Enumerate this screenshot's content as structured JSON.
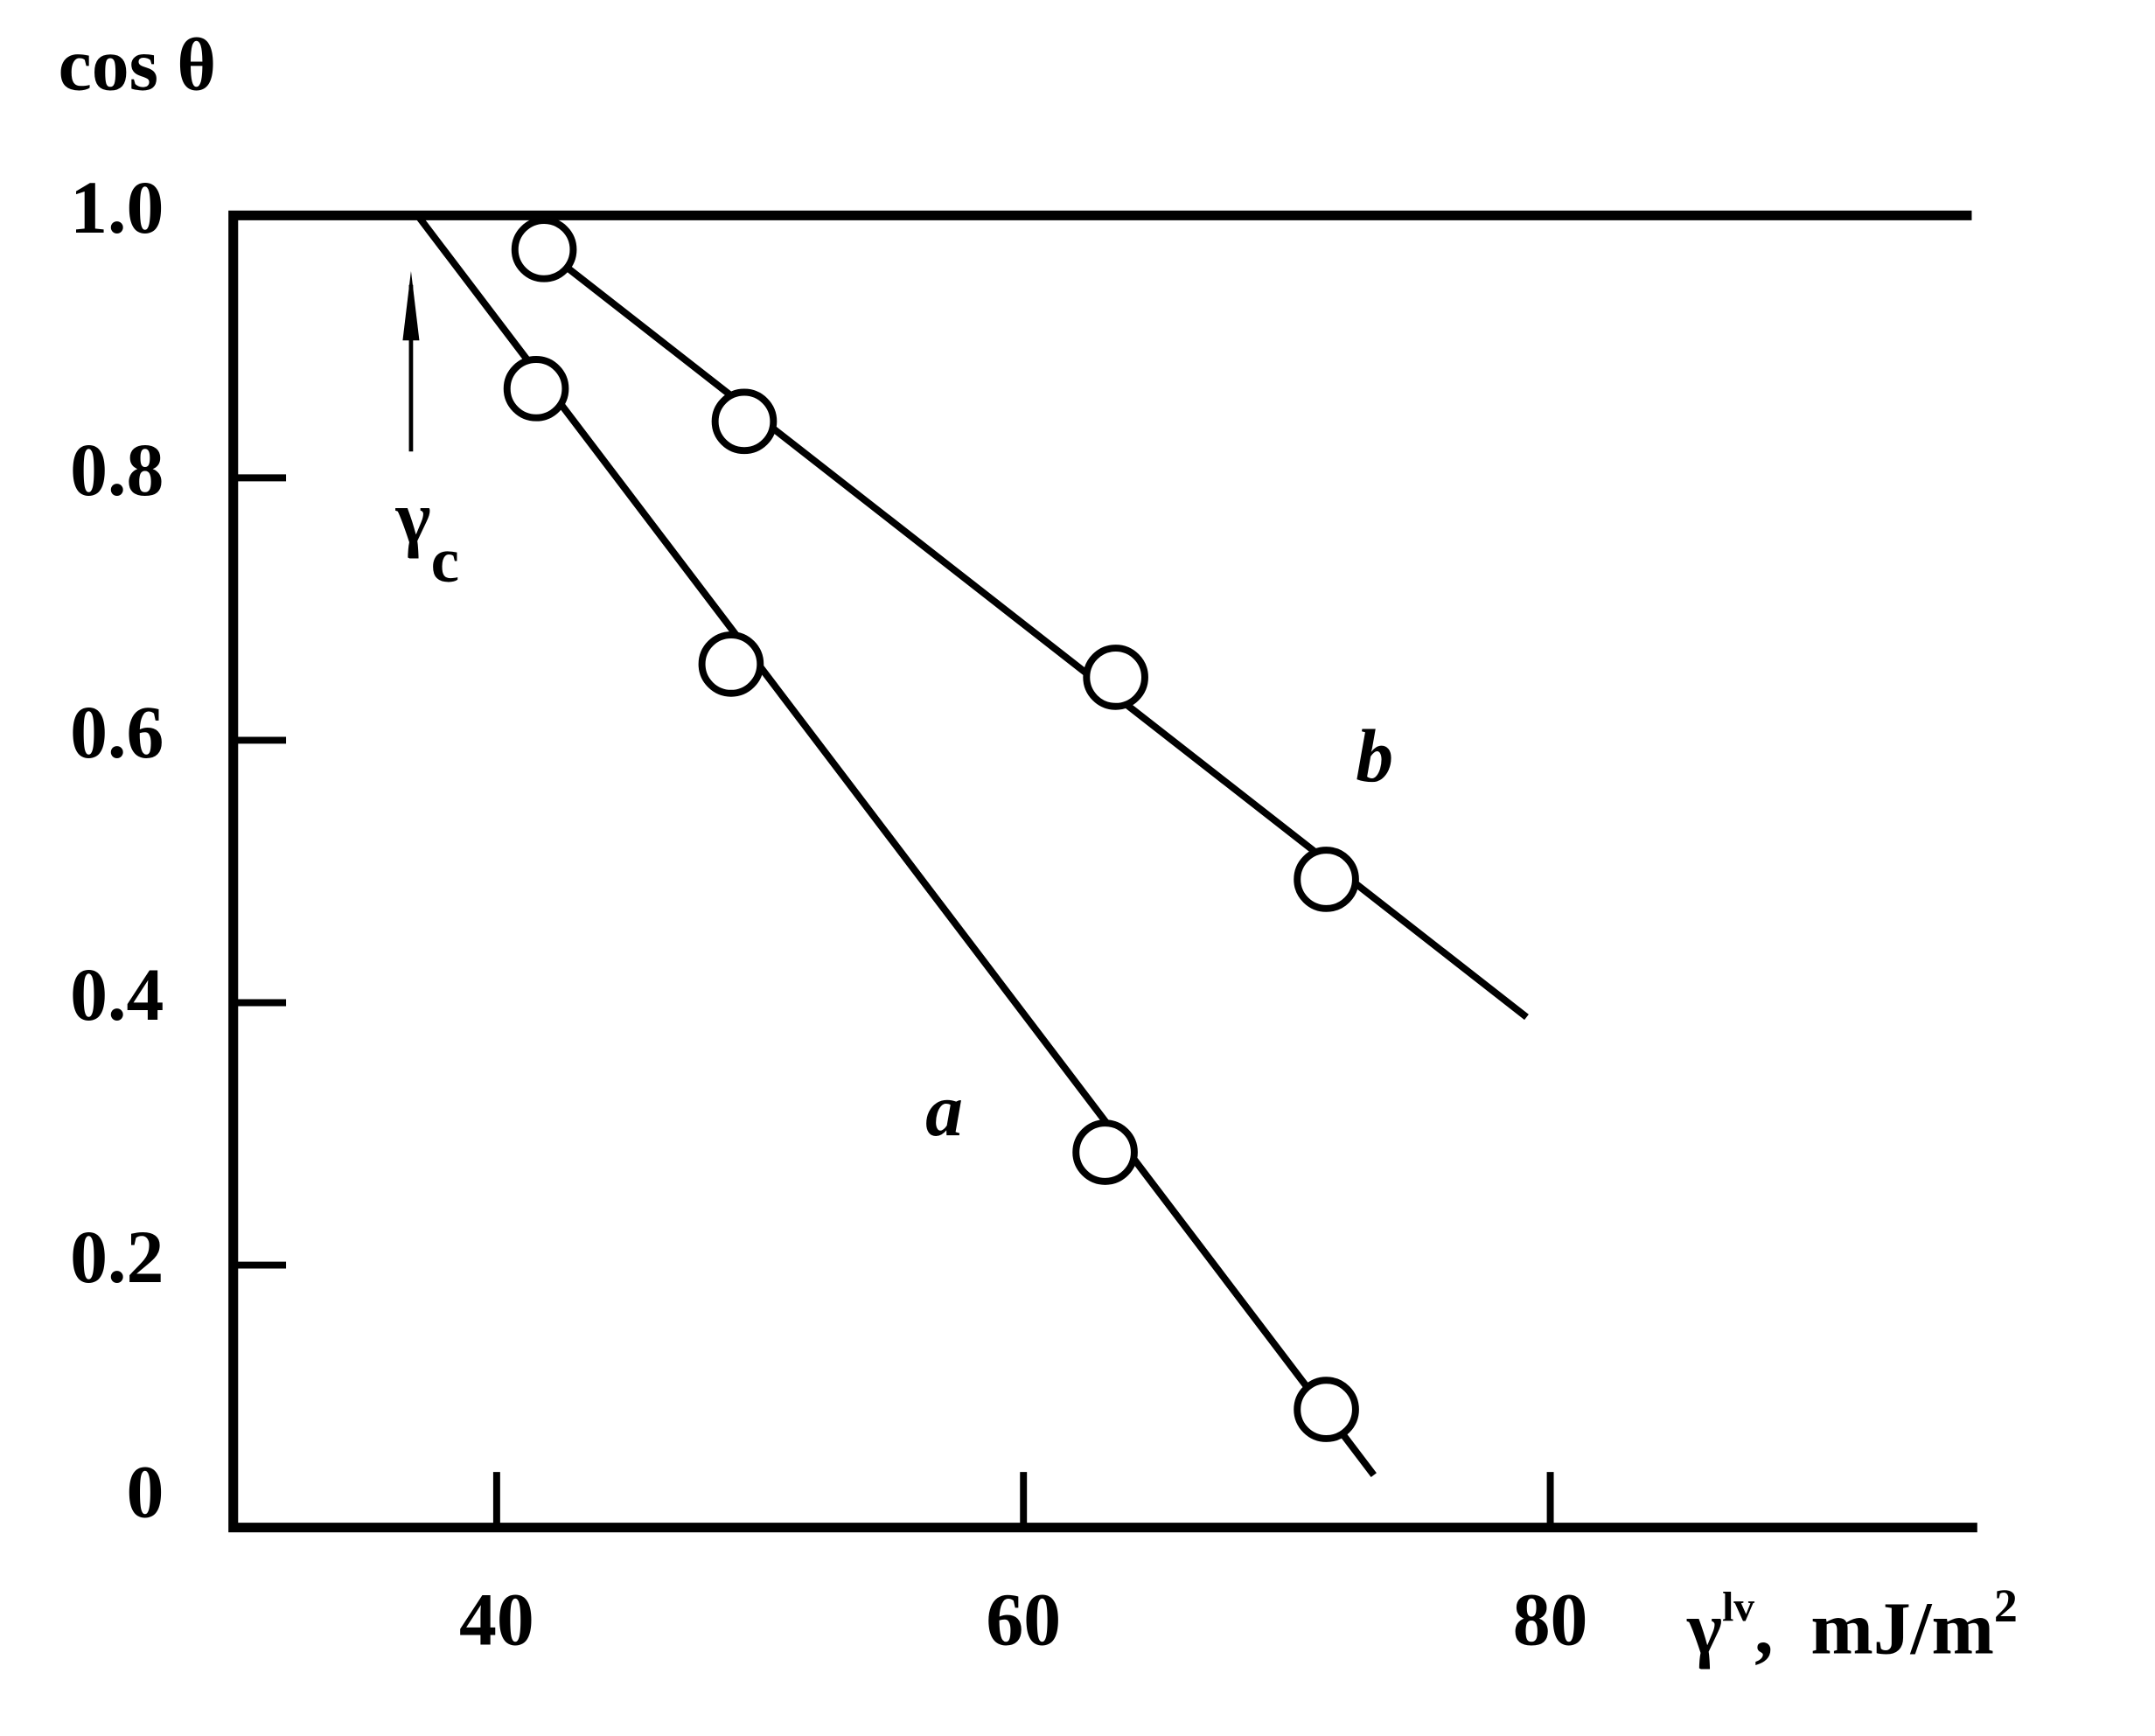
{
  "chart_data": {
    "type": "scatter",
    "y_label": "cos θ",
    "x_label": {
      "symbol": "γ",
      "superscript": "lv",
      "unit": ",  mJ/m",
      "unit_superscript": "2"
    },
    "annotation": {
      "symbol": "γ",
      "subscript": "c"
    },
    "xlim": [
      30,
      96
    ],
    "ylim": [
      0,
      1
    ],
    "xticks": [
      40,
      60,
      80
    ],
    "yticks": [
      0,
      0.2,
      0.4,
      0.6,
      0.8,
      {
        "value": 1,
        "label": "1.0"
      }
    ],
    "series": [
      {
        "name": "a",
        "color": "#000000",
        "x": [
          41.5,
          48.9,
          63.1,
          71.5
        ],
        "values": [
          0.868,
          0.658,
          0.286,
          0.09
        ],
        "fit": {
          "x": [
            37.0,
            73.3
          ],
          "values": [
            1.0,
            0.04
          ]
        }
      },
      {
        "name": "b",
        "color": "#000000",
        "x": [
          41.8,
          49.4,
          63.5,
          71.5
        ],
        "values": [
          0.974,
          0.843,
          0.648,
          0.494
        ],
        "fit": {
          "x": [
            41.8,
            79.1
          ],
          "values": [
            0.974,
            0.389
          ]
        }
      }
    ]
  }
}
